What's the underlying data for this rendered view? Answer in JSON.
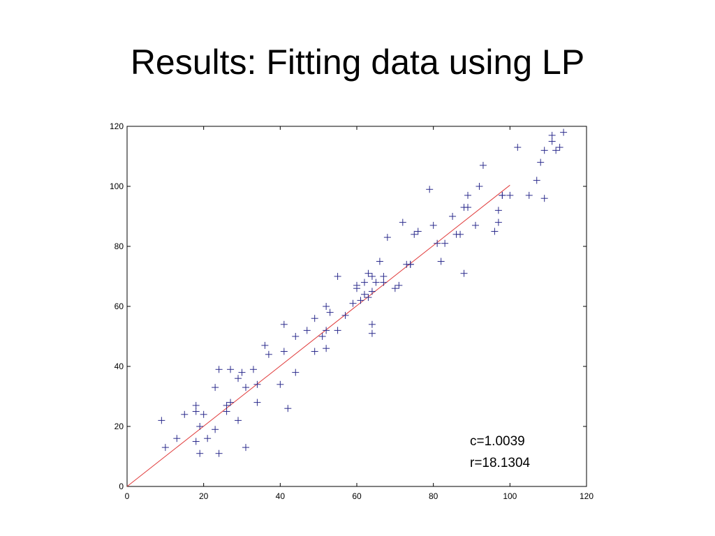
{
  "slide": {
    "title": "Results: Fitting data using LP"
  },
  "chart_data": {
    "type": "scatter",
    "title": "",
    "xlabel": "",
    "ylabel": "",
    "xlim": [
      0,
      120
    ],
    "ylim": [
      0,
      120
    ],
    "xticks": [
      0,
      20,
      40,
      60,
      80,
      100,
      120
    ],
    "yticks": [
      0,
      20,
      40,
      60,
      80,
      100,
      120
    ],
    "grid": false,
    "colors": {
      "points": "#2b2b8c",
      "fit_line": "#e03a3a",
      "axes": "#000000"
    },
    "marker": "plus",
    "series": [
      {
        "x": [
          9,
          10,
          13,
          15,
          18,
          18,
          18,
          19,
          19,
          20,
          21,
          23,
          23,
          24,
          24,
          26,
          26,
          27,
          27,
          29,
          29,
          30,
          31,
          31,
          33,
          34,
          34,
          36,
          37,
          40,
          41,
          41,
          42,
          44,
          44,
          47,
          49,
          49,
          51,
          52,
          52,
          52,
          53,
          55,
          55,
          57,
          59,
          60,
          60,
          61,
          62,
          62,
          63,
          63,
          64,
          64,
          64,
          64,
          65,
          66,
          67,
          67,
          68,
          70,
          71,
          72,
          73,
          74,
          74,
          75,
          76,
          79,
          80,
          81,
          82,
          83,
          85,
          86,
          87,
          88,
          88,
          89,
          89,
          91,
          92,
          93,
          96,
          97,
          97,
          98,
          98,
          100,
          102,
          105,
          107,
          108,
          109,
          109,
          111,
          111,
          112,
          113,
          114
        ],
        "y": [
          22,
          13,
          16,
          24,
          15,
          25,
          27,
          11,
          20,
          24,
          16,
          19,
          33,
          11,
          39,
          25,
          27,
          39,
          28,
          36,
          22,
          38,
          13,
          33,
          39,
          28,
          34,
          47,
          44,
          34,
          45,
          54,
          26,
          38,
          50,
          52,
          45,
          56,
          50,
          52,
          60,
          46,
          58,
          70,
          52,
          57,
          61,
          66,
          67,
          62,
          68,
          64,
          63,
          71,
          51,
          54,
          70,
          65,
          68,
          75,
          70,
          68,
          83,
          66,
          67,
          88,
          74,
          74,
          74,
          84,
          85,
          99,
          87,
          81,
          75,
          81,
          90,
          84,
          84,
          71,
          93,
          97,
          93,
          87,
          100,
          107,
          85,
          88,
          92,
          97,
          97,
          97,
          113,
          97,
          102,
          108,
          112,
          96,
          115,
          117,
          112,
          113,
          118
        ]
      }
    ],
    "fit_line": {
      "x": [
        0,
        100
      ],
      "y": [
        0,
        100.39
      ]
    },
    "annotations": [
      "c=1.0039",
      "r=18.1304"
    ]
  }
}
